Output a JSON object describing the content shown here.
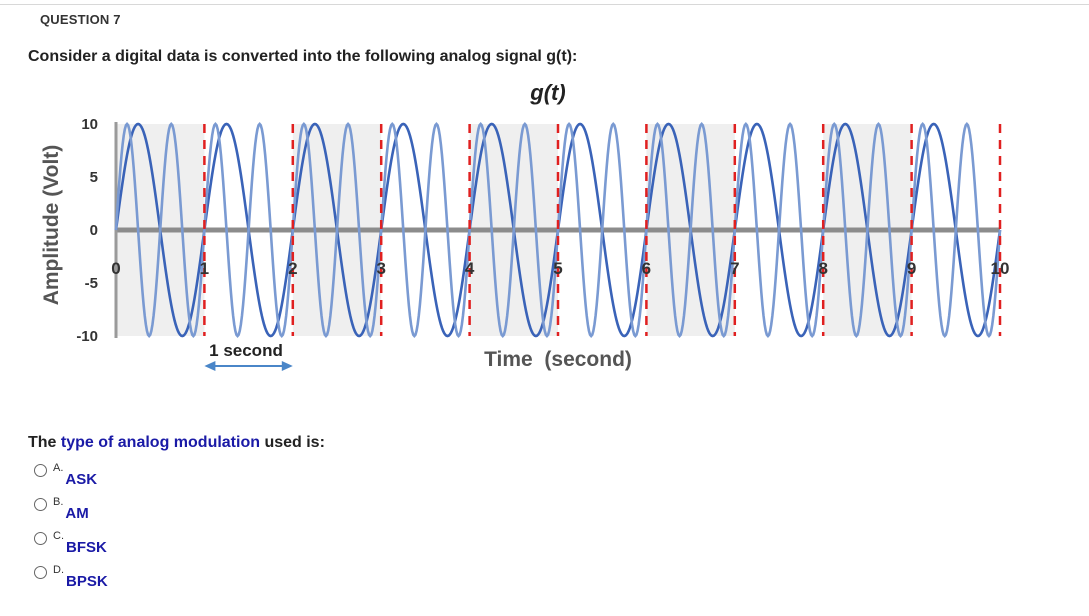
{
  "question": {
    "number_label": "QUESTION 7",
    "prompt": "Consider a digital data is converted into the following analog signal g(t):",
    "stem_prefix": "The ",
    "stem_highlight": "type of analog modulation",
    "stem_suffix": " used is:",
    "options": [
      {
        "letter": "A.",
        "text": "ASK"
      },
      {
        "letter": "B.",
        "text": "AM"
      },
      {
        "letter": "C.",
        "text": "BFSK"
      },
      {
        "letter": "D.",
        "text": "BPSK"
      }
    ]
  },
  "chart_data": {
    "type": "line",
    "title": "g(t)",
    "xlabel": "Time  (second)",
    "ylabel": "Amplitude (Volt)",
    "xlim": [
      0,
      10
    ],
    "ylim": [
      -10,
      10
    ],
    "yticks": [
      "10",
      "5",
      "0",
      "-5",
      "-10"
    ],
    "xticks": [
      "0",
      "1",
      "2",
      "3",
      "4",
      "5",
      "6",
      "7",
      "8",
      "9",
      "10"
    ],
    "annotation": "1 second",
    "bit_duration_s": 1,
    "amplitude_v": 10,
    "series": [
      {
        "color": "#3a63b8",
        "segments": [
          {
            "from": 0,
            "to": 10,
            "cycles_per_second": 1
          }
        ]
      },
      {
        "color": "#7a9ad2",
        "segments": [
          {
            "from": 0,
            "to": 10,
            "cycles_per_second": 2
          }
        ]
      }
    ],
    "bit_boundaries": [
      1,
      2,
      3,
      4,
      5,
      6,
      7,
      8,
      9,
      10
    ],
    "colors": {
      "boundary": "#e02020",
      "zero_line": "#8c8c8c",
      "band": "#efefef",
      "arrow": "#4a86c8"
    }
  }
}
